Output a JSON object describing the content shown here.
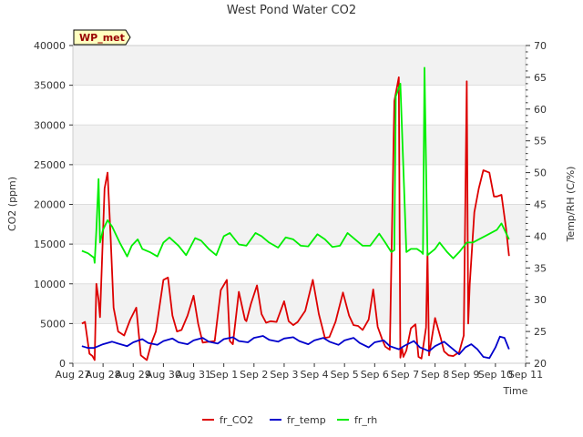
{
  "chart_data": {
    "type": "line",
    "title": "West Pond Water CO2",
    "xlabel": "Time",
    "ylabel": "CO2 (ppm)",
    "y2label": "Temp/RH (C/%)",
    "annotation": "WP_met",
    "xlim": [
      0,
      15
    ],
    "ylim": [
      0,
      40000
    ],
    "y2lim": [
      20,
      70
    ],
    "x_ticks": [
      {
        "x": 0,
        "label": "Aug 27"
      },
      {
        "x": 1,
        "label": "Aug 28"
      },
      {
        "x": 2,
        "label": "Aug 29"
      },
      {
        "x": 3,
        "label": "Aug 30"
      },
      {
        "x": 4,
        "label": "Aug 31"
      },
      {
        "x": 5,
        "label": "Sep 1"
      },
      {
        "x": 6,
        "label": "Sep 2"
      },
      {
        "x": 7,
        "label": "Sep 3"
      },
      {
        "x": 8,
        "label": "Sep 4"
      },
      {
        "x": 9,
        "label": "Sep 5"
      },
      {
        "x": 10,
        "label": "Sep 6"
      },
      {
        "x": 11,
        "label": "Sep 7"
      },
      {
        "x": 12,
        "label": "Sep 8"
      },
      {
        "x": 13,
        "label": "Sep 9"
      },
      {
        "x": 14,
        "label": "Sep 10"
      },
      {
        "x": 15,
        "label": "Sep 11"
      }
    ],
    "y_ticks": [
      0,
      5000,
      10000,
      15000,
      20000,
      25000,
      30000,
      35000,
      40000
    ],
    "y2_ticks": [
      20,
      25,
      30,
      35,
      40,
      45,
      50,
      55,
      60,
      65,
      70
    ],
    "series": [
      {
        "name": "fr_CO2",
        "axis": "left",
        "color": "#dd0000",
        "x": [
          0.3,
          0.4,
          0.55,
          0.65,
          0.72,
          0.78,
          0.85,
          0.9,
          1.05,
          1.15,
          1.25,
          1.35,
          1.5,
          1.7,
          1.9,
          2.1,
          2.25,
          2.45,
          2.6,
          2.75,
          3.0,
          3.15,
          3.3,
          3.45,
          3.6,
          3.8,
          4.0,
          4.15,
          4.3,
          4.5,
          4.7,
          4.9,
          5.1,
          5.2,
          5.3,
          5.5,
          5.7,
          5.75,
          5.9,
          6.1,
          6.25,
          6.4,
          6.55,
          6.75,
          7.0,
          7.15,
          7.3,
          7.45,
          7.7,
          7.95,
          8.15,
          8.35,
          8.5,
          8.7,
          8.95,
          9.15,
          9.3,
          9.45,
          9.6,
          9.8,
          9.95,
          10.1,
          10.25,
          10.35,
          10.5,
          10.65,
          10.8,
          10.85,
          10.9,
          10.95,
          11.05,
          11.2,
          11.35,
          11.45,
          11.55,
          11.7,
          11.75,
          11.8,
          12.0,
          12.2,
          12.3,
          12.45,
          12.6,
          12.8,
          12.95,
          13.05,
          13.1,
          13.15,
          13.3,
          13.45,
          13.6,
          13.8,
          13.95,
          14.05,
          14.2,
          14.35,
          14.45
        ],
        "y": [
          5000,
          5200,
          1200,
          900,
          400,
          10000,
          8000,
          5800,
          22000,
          24000,
          16000,
          7000,
          4000,
          3500,
          5500,
          7000,
          1000,
          400,
          2500,
          4000,
          10500,
          10800,
          6000,
          4000,
          4200,
          6000,
          8500,
          5000,
          2600,
          2700,
          2800,
          9200,
          10500,
          2800,
          2400,
          9000,
          5500,
          5300,
          7500,
          9800,
          6200,
          5100,
          5300,
          5200,
          7800,
          5300,
          4800,
          5200,
          6600,
          10500,
          6200,
          3200,
          3300,
          5200,
          8900,
          6000,
          4800,
          4700,
          4200,
          5500,
          9300,
          4600,
          3000,
          2100,
          1700,
          33000,
          36000,
          700,
          2000,
          800,
          1600,
          4400,
          4900,
          800,
          600,
          4500,
          14000,
          1000,
          5700,
          3000,
          1500,
          1000,
          900,
          1400,
          3500,
          35500,
          5000,
          10000,
          19000,
          22000,
          24300,
          24000,
          21000,
          21000,
          21200,
          17000,
          13500
        ]
      },
      {
        "name": "fr_temp",
        "axis": "right",
        "color": "#0000cc",
        "x": [
          0.3,
          0.5,
          0.7,
          1.0,
          1.3,
          1.5,
          1.8,
          2.0,
          2.3,
          2.5,
          2.8,
          3.0,
          3.3,
          3.5,
          3.8,
          4.0,
          4.3,
          4.5,
          4.8,
          5.0,
          5.3,
          5.5,
          5.8,
          6.0,
          6.3,
          6.5,
          6.8,
          7.0,
          7.3,
          7.5,
          7.8,
          8.0,
          8.3,
          8.5,
          8.8,
          9.0,
          9.3,
          9.5,
          9.8,
          10.0,
          10.3,
          10.5,
          10.8,
          11.0,
          11.3,
          11.5,
          11.8,
          12.0,
          12.3,
          12.5,
          12.8,
          13.0,
          13.2,
          13.4,
          13.6,
          13.8,
          14.0,
          14.15,
          14.3,
          14.45
        ],
        "y": [
          22.7,
          22.4,
          22.4,
          23.0,
          23.4,
          23.1,
          22.7,
          23.3,
          23.8,
          23.2,
          22.9,
          23.5,
          23.9,
          23.3,
          23.0,
          23.6,
          24.0,
          23.4,
          23.1,
          23.8,
          24.1,
          23.5,
          23.3,
          24.0,
          24.3,
          23.7,
          23.4,
          23.9,
          24.1,
          23.5,
          23.0,
          23.6,
          24.0,
          23.4,
          22.9,
          23.6,
          24.0,
          23.2,
          22.5,
          23.3,
          23.6,
          22.7,
          22.2,
          22.8,
          23.5,
          22.5,
          21.9,
          22.7,
          23.4,
          22.6,
          21.4,
          22.5,
          23.0,
          22.2,
          21.0,
          20.8,
          22.5,
          24.2,
          24.0,
          22.2
        ]
      },
      {
        "name": "fr_rh",
        "axis": "right",
        "color": "#00ee00",
        "x": [
          0.3,
          0.5,
          0.7,
          0.72,
          0.78,
          0.85,
          0.9,
          1.0,
          1.15,
          1.3,
          1.55,
          1.8,
          1.95,
          2.15,
          2.3,
          2.55,
          2.8,
          3.0,
          3.2,
          3.5,
          3.75,
          4.05,
          4.25,
          4.5,
          4.75,
          5.0,
          5.2,
          5.5,
          5.75,
          6.05,
          6.25,
          6.5,
          6.8,
          7.05,
          7.3,
          7.55,
          7.8,
          8.1,
          8.35,
          8.6,
          8.85,
          9.1,
          9.35,
          9.6,
          9.85,
          10.15,
          10.35,
          10.55,
          10.65,
          10.7,
          10.85,
          11.05,
          11.2,
          11.4,
          11.55,
          11.6,
          11.65,
          11.75,
          12.0,
          12.15,
          12.4,
          12.6,
          12.8,
          13.05,
          13.25,
          13.45,
          13.65,
          13.85,
          14.05,
          14.2,
          14.3,
          14.45
        ],
        "y": [
          37.7,
          37.3,
          36.6,
          35.8,
          41.0,
          49.0,
          39.0,
          41.0,
          42.5,
          41.5,
          39.0,
          36.8,
          38.5,
          39.5,
          38.0,
          37.5,
          36.8,
          39.0,
          39.8,
          38.5,
          37.0,
          39.7,
          39.3,
          38.0,
          37.0,
          40.0,
          40.5,
          38.7,
          38.5,
          40.5,
          40.0,
          39.0,
          38.2,
          39.8,
          39.5,
          38.5,
          38.4,
          40.3,
          39.5,
          38.3,
          38.5,
          40.5,
          39.5,
          38.5,
          38.5,
          40.4,
          39.0,
          37.5,
          37.8,
          62.0,
          64.0,
          37.5,
          38.0,
          38.0,
          37.5,
          37.2,
          66.5,
          37.0,
          38.0,
          39.0,
          37.5,
          36.5,
          37.5,
          39.0,
          39.0,
          39.5,
          40.0,
          40.5,
          41.0,
          42.0,
          41.0,
          39.5
        ]
      }
    ],
    "legend_position": "bottom-center",
    "grid": true
  }
}
